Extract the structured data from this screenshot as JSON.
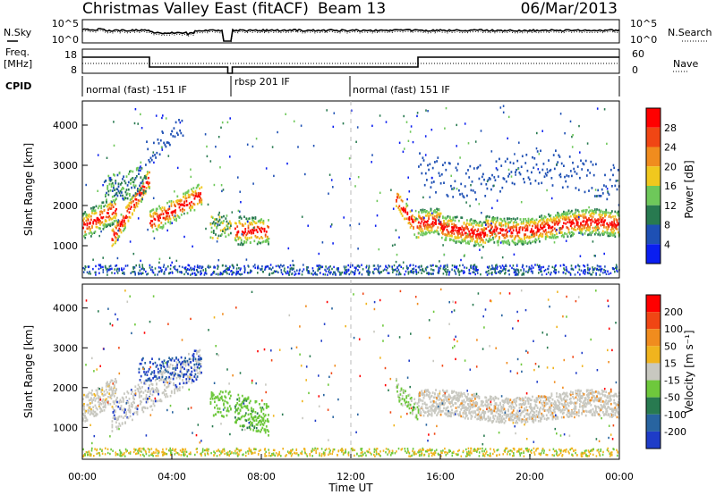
{
  "header": {
    "title": "Christmas Valley East (fitACF)",
    "beam": "Beam 13",
    "date": "06/Mar/2013"
  },
  "strips": {
    "nsky_label": "N.Sky",
    "nsky_ticks": [
      "10^5",
      "10^0"
    ],
    "nsearch_label": "N.Search",
    "nsearch_ticks": [
      "10^5",
      "10^0"
    ],
    "freq_label_1": "Freq.",
    "freq_label_2": "[MHz]",
    "freq_ticks": [
      "18",
      "8"
    ],
    "nave_label": "Nave",
    "nave_ticks": [
      "60",
      "0"
    ],
    "cpid_label": "CPID",
    "cpid_segments": [
      {
        "label": "normal (fast) -151 IF",
        "start_hour": 0.0
      },
      {
        "label": "rbsp 201 IF",
        "start_hour": 6.67
      },
      {
        "label": "normal (fast) 151 IF",
        "start_hour": 12.0
      }
    ]
  },
  "chart_data": [
    {
      "type": "heatmap",
      "name": "power-panel",
      "ylabel": "Slant Range [km]",
      "yticks": [
        "4000",
        "3000",
        "2000",
        "1000"
      ],
      "ylim": [
        200,
        4600
      ],
      "xlim": [
        0,
        24
      ],
      "colorbar_label": "Power [dB]",
      "colorbar_ticks": [
        "28",
        "24",
        "20",
        "16",
        "12",
        "8",
        "4"
      ],
      "colors": [
        "#0a1ef0",
        "#1e50b4",
        "#287a50",
        "#6ec85a",
        "#f0c81e",
        "#f08c1e",
        "#f04614",
        "#ff0000"
      ]
    },
    {
      "type": "heatmap",
      "name": "velocity-panel",
      "ylabel": "Slant Range [km]",
      "yticks": [
        "4000",
        "3000",
        "2000",
        "1000"
      ],
      "ylim": [
        200,
        4600
      ],
      "xlim": [
        0,
        24
      ],
      "colorbar_label": "Velocity [m s⁻¹]",
      "colorbar_ticks": [
        "200",
        "100",
        "50",
        "15",
        "-15",
        "-50",
        "-100",
        "-200"
      ],
      "colors": [
        "#1e3cc8",
        "#2864a0",
        "#287a50",
        "#6ec83c",
        "#c8c8c0",
        "#f0b41e",
        "#f08c1e",
        "#f04614",
        "#ff0000"
      ]
    }
  ],
  "time_axis": {
    "xlabel": "Time UT",
    "ticks": [
      "00:00",
      "04:00",
      "08:00",
      "12:00",
      "16:00",
      "20:00",
      "00:00"
    ]
  }
}
